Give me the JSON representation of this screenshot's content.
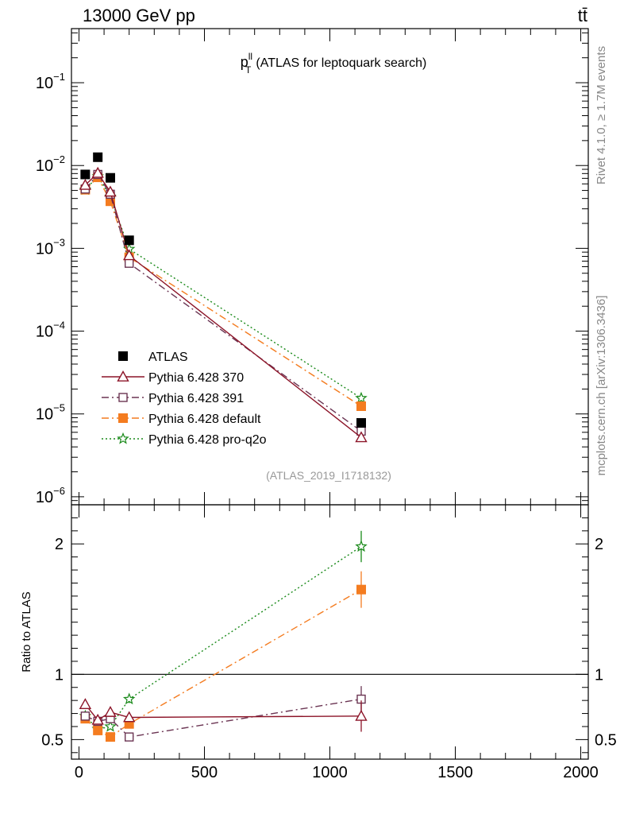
{
  "header": {
    "left": "13000 GeV pp",
    "right": "tt̄"
  },
  "side": {
    "rivet": "Rivet 4.1.0, ≥ 1.7M events",
    "mcplots": "mcplots.cern.ch [arXiv:1306.3436]"
  },
  "chart_data": {
    "type": "scatter",
    "title_main": "p",
    "title_sup": "ll",
    "title_sub": "T",
    "title_rest": "(ATLAS for leptoquark search)",
    "analysis_id": "(ATLAS_2019_I1718132)",
    "xlim": [
      -30,
      2030
    ],
    "xticks": [
      0,
      500,
      1000,
      1500,
      2000
    ],
    "main": {
      "yscale": "log",
      "ylim": [
        8e-07,
        0.45
      ],
      "yticks": [
        {
          "v": 0.1,
          "m": "10",
          "e": "−1"
        },
        {
          "v": 0.01,
          "m": "10",
          "e": "−2"
        },
        {
          "v": 0.001,
          "m": "10",
          "e": "−3"
        },
        {
          "v": 0.0001,
          "m": "10",
          "e": "−4"
        },
        {
          "v": 1e-05,
          "m": "10",
          "e": "−5"
        },
        {
          "v": 1e-06,
          "m": "10",
          "e": "−6"
        }
      ]
    },
    "ratio": {
      "ylabel": "Ratio to ATLAS",
      "ylim": [
        0.35,
        2.3
      ],
      "yticks": [
        {
          "v": 0.5,
          "label": "0.5"
        },
        {
          "v": 1,
          "label": "1"
        },
        {
          "v": 2,
          "label": "2"
        }
      ],
      "reference": 1
    },
    "series": [
      {
        "name": "ATLAS",
        "color": "#000000",
        "marker": "square-filled",
        "line": "none",
        "x": [
          25,
          75,
          125,
          200,
          1125
        ],
        "y": [
          0.0078,
          0.0126,
          0.0071,
          0.00125,
          7.8e-06
        ]
      },
      {
        "name": "Pythia 6.428 370",
        "color": "#8c1428",
        "marker": "triangle-open",
        "line": "solid",
        "x": [
          25,
          75,
          125,
          200,
          1125
        ],
        "y": [
          0.0058,
          0.0081,
          0.0048,
          0.00082,
          5.2e-06
        ],
        "ratio": [
          0.77,
          0.65,
          0.71,
          0.67,
          0.68
        ],
        "ratio_err": [
          0.01,
          0.01,
          0.01,
          0.03,
          0.12
        ]
      },
      {
        "name": "Pythia 6.428 391",
        "color": "#6b3553",
        "marker": "square-open",
        "line": "dashdot",
        "x": [
          25,
          75,
          125,
          200,
          1125
        ],
        "y": [
          0.0052,
          0.0078,
          0.0045,
          0.00066,
          6.2e-06
        ],
        "ratio": [
          0.68,
          0.64,
          0.66,
          0.52,
          0.81
        ],
        "ratio_err": [
          0.01,
          0.01,
          0.01,
          0.03,
          0.1
        ]
      },
      {
        "name": "Pythia 6.428 default",
        "color": "#f47c20",
        "marker": "square-filled",
        "line": "dashdot",
        "x": [
          25,
          75,
          125,
          200,
          1125
        ],
        "y": [
          0.0051,
          0.0072,
          0.0037,
          0.00078,
          1.24e-05
        ],
        "ratio": [
          0.66,
          0.57,
          0.52,
          0.62,
          1.65
        ],
        "ratio_err": [
          0.01,
          0.01,
          0.02,
          0.03,
          0.14
        ]
      },
      {
        "name": "Pythia 6.428 pro-q2o",
        "color": "#1a8a1a",
        "marker": "star-open",
        "line": "dotted",
        "x": [
          25,
          75,
          125,
          200,
          1125
        ],
        "y": [
          0.0051,
          0.0074,
          0.0042,
          0.00098,
          1.55e-05
        ],
        "ratio": [
          0.68,
          0.58,
          0.6,
          0.81,
          1.98
        ],
        "ratio_err": [
          0.01,
          0.01,
          0.01,
          0.03,
          0.12
        ]
      }
    ]
  }
}
